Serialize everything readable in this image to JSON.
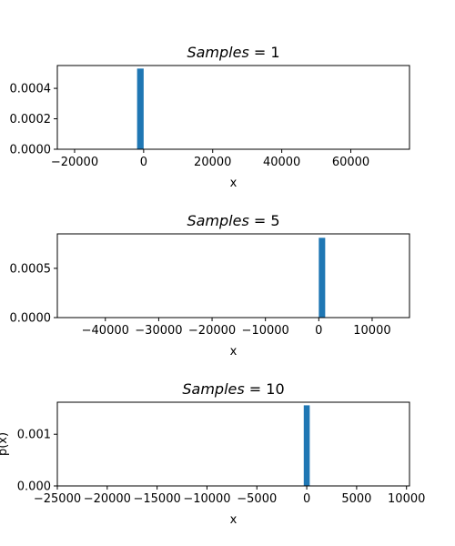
{
  "chart_data": [
    {
      "type": "bar",
      "title": "Samples = 1",
      "xlabel": "x",
      "ylabel": "",
      "xlim": [
        -25000,
        77000
      ],
      "ylim": [
        0,
        0.00055
      ],
      "xticks": [
        -20000,
        0,
        20000,
        40000,
        60000
      ],
      "xtick_labels": [
        "−20000",
        "0",
        "20000",
        "40000",
        "60000"
      ],
      "yticks": [
        0,
        0.0002,
        0.0004
      ],
      "ytick_labels": [
        "0.0000",
        "0.0002",
        "0.0004"
      ],
      "bars": [
        {
          "x_start": -1900,
          "x_end": 0,
          "value": 0.00053
        }
      ],
      "color": "#1f77b4",
      "grid": false
    },
    {
      "type": "bar",
      "title": "Samples = 5",
      "xlabel": "x",
      "ylabel": "",
      "xlim": [
        -49000,
        17000
      ],
      "ylim": [
        0,
        0.00085
      ],
      "xticks": [
        -40000,
        -30000,
        -20000,
        -10000,
        0,
        10000
      ],
      "xtick_labels": [
        "−40000",
        "−30000",
        "−20000",
        "−10000",
        "0",
        "10000"
      ],
      "yticks": [
        0,
        0.0005
      ],
      "ytick_labels": [
        "0.0000",
        "0.0005"
      ],
      "bars": [
        {
          "x_start": 0,
          "x_end": 1200,
          "value": 0.00081
        }
      ],
      "color": "#1f77b4",
      "grid": false
    },
    {
      "type": "bar",
      "title": "Samples = 10",
      "xlabel": "x",
      "ylabel": "p(x)",
      "xlim": [
        -25000,
        10300
      ],
      "ylim": [
        0,
        0.00162
      ],
      "xticks": [
        -25000,
        -20000,
        -15000,
        -10000,
        -5000,
        0,
        5000,
        10000
      ],
      "xtick_labels": [
        "−25000",
        "−20000",
        "−15000",
        "−10000",
        "−5000",
        "0",
        "5000",
        "10000"
      ],
      "yticks": [
        0,
        0.001
      ],
      "ytick_labels": [
        "0.000",
        "0.001"
      ],
      "bars": [
        {
          "x_start": -300,
          "x_end": 300,
          "value": 0.00156
        }
      ],
      "color": "#1f77b4",
      "grid": false
    }
  ]
}
